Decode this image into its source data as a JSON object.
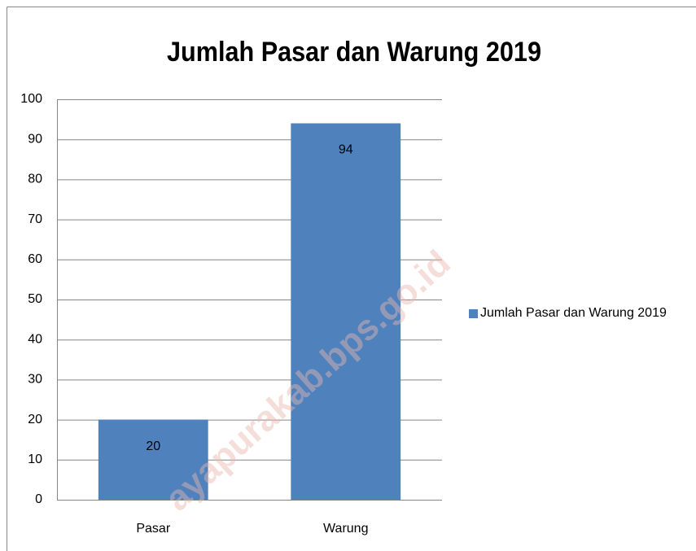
{
  "chart_data": {
    "type": "bar",
    "title": "Jumlah Pasar dan Warung 2019",
    "categories": [
      "Pasar",
      "Warung"
    ],
    "series": [
      {
        "name": "Jumlah Pasar dan Warung 2019",
        "color": "#4f81bd",
        "values": [
          20,
          94
        ]
      }
    ],
    "ylim": [
      0,
      100
    ],
    "yticks": [
      0,
      10,
      20,
      30,
      40,
      50,
      60,
      70,
      80,
      90,
      100
    ],
    "grid": true,
    "legend": "right",
    "watermark": "ayapurakab.bps.go.id"
  }
}
